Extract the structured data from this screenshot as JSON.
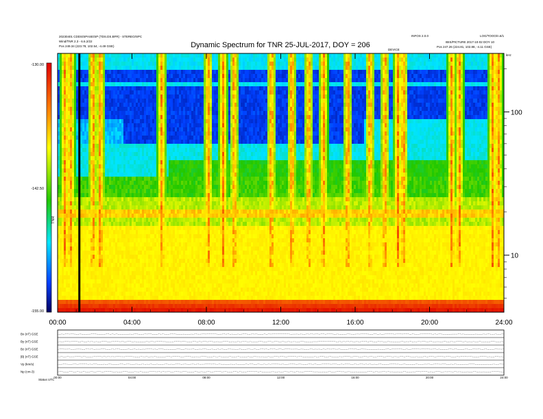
{
  "header": {
    "title": "Dynamic Spectrum for TNR 25-JUL-2017, DOY = 206",
    "left_line1": "20230401 CDDS/SPASE/SP (TDS.DS.BFR) - STEREO/SPC",
    "left_line2": "Wind/TNR 2.3 - 6.6.2/22",
    "left_line3": "Pos 249.34 (223.78, 102.54, -4.49 GSE)",
    "right_top_mid": "INFOS 2.0.0",
    "right_top_right": "LOG/TOOO/n.6/1",
    "right_line2": "IBIS/PICTURE 2017-10-02 DOY 10",
    "right_line3": "Pos 247.26 (224.81, 102.88, -4.11 GSE)",
    "mid_label": "DEVICE",
    "corner_label": "kHz"
  },
  "colorbar": {
    "unit_label": "TNR",
    "ticks": [
      "-130.00",
      "-142.50",
      "-155.00"
    ]
  },
  "panels": {
    "bottom_label": "Status   UTC",
    "rows": [
      {
        "label": "Bx (nT) GSE"
      },
      {
        "label": "By (nT) GSE"
      },
      {
        "label": "Bz (nT) GSE"
      },
      {
        "label": "|B| (nT) GSE"
      },
      {
        "label": "Vp (km/s)"
      },
      {
        "label": "Np (cm-3)"
      }
    ]
  },
  "colors": {
    "background": "#ffffff",
    "frame": "#000000"
  },
  "chart_data": {
    "type": "heatmap",
    "title": "Dynamic Spectrum for TNR 25-JUL-2017, DOY = 206",
    "xlabel": "",
    "ylabel": "",
    "x_ticks": [
      "00:00",
      "04:00",
      "08:00",
      "12:00",
      "16:00",
      "20:00",
      "24:00"
    ],
    "x_range_hours": [
      0,
      24
    ],
    "y_scale": "log",
    "y_ticks": [
      "10",
      "100"
    ],
    "y_range_khz": [
      4,
      256
    ],
    "z_range": [
      -155,
      -130
    ],
    "z_ticks": [
      -130.0,
      -142.5,
      -155.0
    ],
    "colormap": [
      "dark-blue",
      "blue",
      "cyan",
      "green",
      "yellow",
      "red"
    ]
  }
}
